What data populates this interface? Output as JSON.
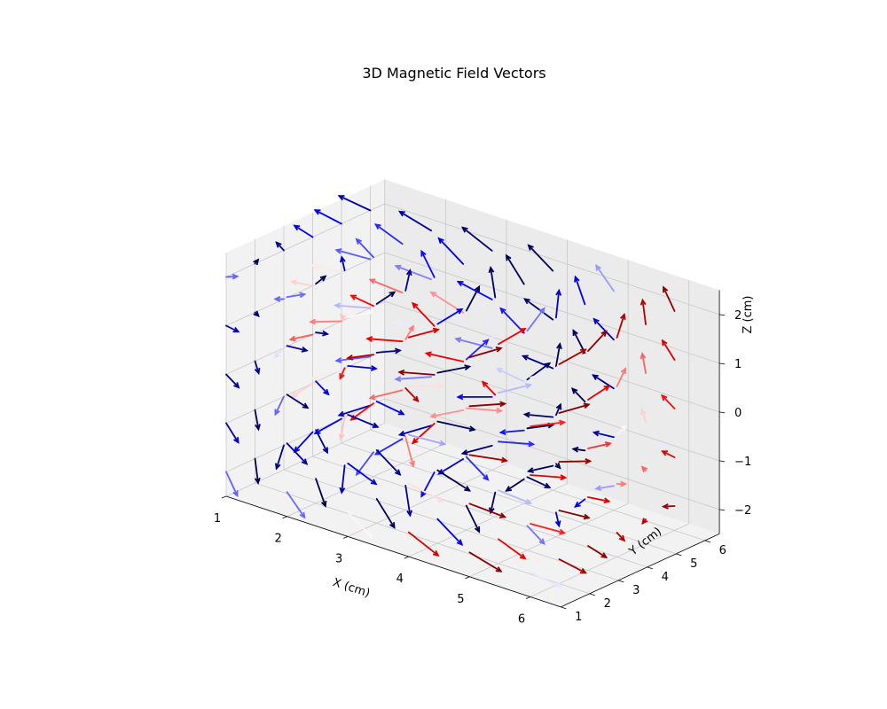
{
  "chart_data": {
    "type": "quiver3d",
    "title": "3D Magnetic Field Vectors",
    "xlabel": "X (cm)",
    "ylabel": "Y (cm)",
    "zlabel": "Z (cm)",
    "xlim": [
      1,
      6.5
    ],
    "ylim": [
      1,
      6.5
    ],
    "zlim": [
      -2.5,
      2.5
    ],
    "xticks": [
      "1",
      "2",
      "3",
      "4",
      "5",
      "6"
    ],
    "yticks": [
      "1",
      "2",
      "3",
      "4",
      "5",
      "6"
    ],
    "zticks": [
      "2",
      "1",
      "0",
      "−1",
      "−2"
    ],
    "grid": true,
    "field": {
      "grid_x": [
        1,
        2,
        3,
        4,
        5,
        6
      ],
      "grid_y": [
        1,
        2,
        3,
        4,
        5,
        6
      ],
      "grid_z": [
        -2,
        -1,
        0,
        1,
        2
      ],
      "center": [
        3.5,
        3.5,
        0
      ],
      "arrow_length": 0.55,
      "colormap": "seismic"
    }
  },
  "colors": {
    "pane_floor": "#f2f2f2",
    "pane_left": "#f2f2f2",
    "pane_back": "#ebebeb",
    "grid": "#c8c8c8",
    "blue": "#0000cc",
    "red": "#ff0000",
    "dark_red": "#8b0000",
    "dark_blue": "#00004d"
  }
}
